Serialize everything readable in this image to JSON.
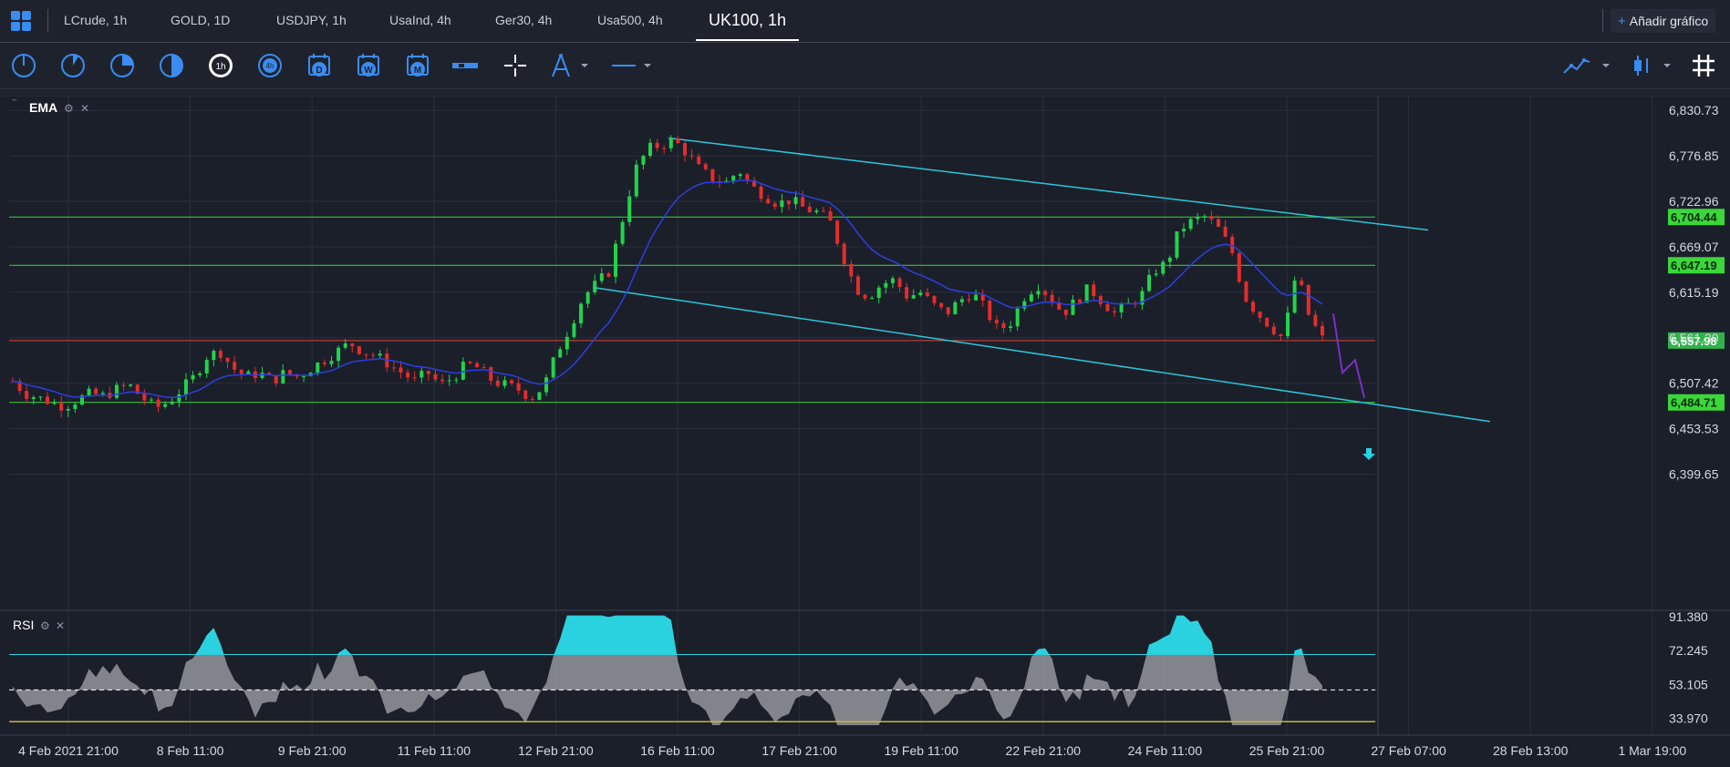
{
  "tabs": [
    {
      "label": "LCrude, 1h",
      "active": false
    },
    {
      "label": "GOLD, 1D",
      "active": false
    },
    {
      "label": "USDJPY, 1h",
      "active": false
    },
    {
      "label": "UsaInd, 4h",
      "active": false
    },
    {
      "label": "Ger30, 4h",
      "active": false
    },
    {
      "label": "Usa500, 4h",
      "active": false
    },
    {
      "label": "UK100, 1h",
      "active": true
    }
  ],
  "add_chart_label": "Añadir gráfico",
  "toolbar": {
    "timeframe_icons": [
      "1m-clock-icon",
      "5m-clock-icon",
      "15m-clock-icon",
      "30m-clock-icon",
      "1h-clock-icon",
      "4h-clock-icon",
      "daily-calendar-icon",
      "weekly-calendar-icon",
      "monthly-calendar-icon",
      "bar-icon",
      "crosshair-icon",
      "drawing-compass-icon",
      "line-tool-icon"
    ],
    "right_icons": [
      "line-chart-type-icon",
      "candle-chart-type-icon",
      "grid-icon"
    ],
    "tf_letters": {
      "daily": "D",
      "weekly": "W",
      "monthly": "M",
      "h1": "1h",
      "h4": "4h"
    }
  },
  "indicators": {
    "main": "EMA",
    "sub": "RSI"
  },
  "colors": {
    "bg": "#1b1f2a",
    "bull": "#22d34a",
    "bear": "#e52c2c",
    "ema": "#2b3fe0",
    "channel": "#2cc6d6",
    "support": "#3ad63a",
    "price_line": "#d9483b",
    "accent": "#3a8cf0",
    "rsi_fill": "#8e8f97",
    "rsi_overbought": "#29d2de"
  },
  "price_axis": {
    "ticks": [
      "6,830.73",
      "6,776.85",
      "6,722.96",
      "6,669.07",
      "6,615.19",
      "6,561.30",
      "6,507.42",
      "6,453.53",
      "6,399.65"
    ]
  },
  "rsi_axis": {
    "ticks": [
      "91.380",
      "72.245",
      "53.105",
      "33.970"
    ]
  },
  "level_tags": [
    {
      "label": "6,704.44",
      "value": 6704.44,
      "color": "#3ad63a"
    },
    {
      "label": "6,647.19",
      "value": 6647.19,
      "color": "#3ad63a"
    },
    {
      "label": "6,557.98",
      "value": 6557.98,
      "color": "#30b24a"
    },
    {
      "label": "6,484.71",
      "value": 6484.71,
      "color": "#3ad63a"
    }
  ],
  "time_axis": {
    "labels": [
      "4 Feb 2021 21:00",
      "8 Feb 11:00",
      "9 Feb 21:00",
      "11 Feb 11:00",
      "12 Feb 21:00",
      "16 Feb 11:00",
      "17 Feb 21:00",
      "19 Feb 11:00",
      "22 Feb 21:00",
      "24 Feb 11:00",
      "25 Feb 21:00",
      "27 Feb 07:00",
      "28 Feb 13:00",
      "1 Mar 19:00"
    ]
  },
  "chart_data": {
    "type": "candlestick",
    "symbol": "UK100, 1h",
    "x_labels": [
      "4 Feb 2021 21:00",
      "8 Feb 11:00",
      "9 Feb 21:00",
      "11 Feb 11:00",
      "12 Feb 21:00",
      "16 Feb 11:00",
      "17 Feb 21:00",
      "19 Feb 11:00",
      "22 Feb 21:00",
      "24 Feb 11:00",
      "25 Feb 21:00",
      "27 Feb 07:00",
      "28 Feb 13:00",
      "1 Mar 19:00"
    ],
    "ylim": [
      6370,
      6845
    ],
    "horizontal_levels": [
      6704.44,
      6647.19,
      6557.98,
      6484.71
    ],
    "close_path": [
      6510,
      6495,
      6490,
      6485,
      6480,
      6488,
      6495,
      6492,
      6500,
      6505,
      6490,
      6478,
      6485,
      6500,
      6515,
      6540,
      6545,
      6525,
      6515,
      6520,
      6510,
      6520,
      6515,
      6525,
      6535,
      6545,
      6555,
      6545,
      6540,
      6530,
      6520,
      6510,
      6520,
      6505,
      6515,
      6530,
      6525,
      6510,
      6505,
      6500,
      6490,
      6505,
      6545,
      6575,
      6610,
      6625,
      6640,
      6700,
      6760,
      6785,
      6790,
      6795,
      6780,
      6760,
      6750,
      6745,
      6760,
      6740,
      6730,
      6720,
      6725,
      6715,
      6710,
      6700,
      6660,
      6620,
      6610,
      6625,
      6630,
      6610,
      6615,
      6600,
      6590,
      6605,
      6615,
      6595,
      6570,
      6580,
      6610,
      6625,
      6610,
      6590,
      6605,
      6620,
      6605,
      6590,
      6600,
      6610,
      6640,
      6650,
      6690,
      6700,
      6705,
      6690,
      6665,
      6610,
      6590,
      6575,
      6560,
      6640,
      6585,
      6560
    ],
    "projection": [
      6590,
      6520,
      6535,
      6490
    ],
    "rsi_ylim": [
      28,
      95
    ],
    "rsi_levels": [
      70,
      50,
      32
    ]
  }
}
